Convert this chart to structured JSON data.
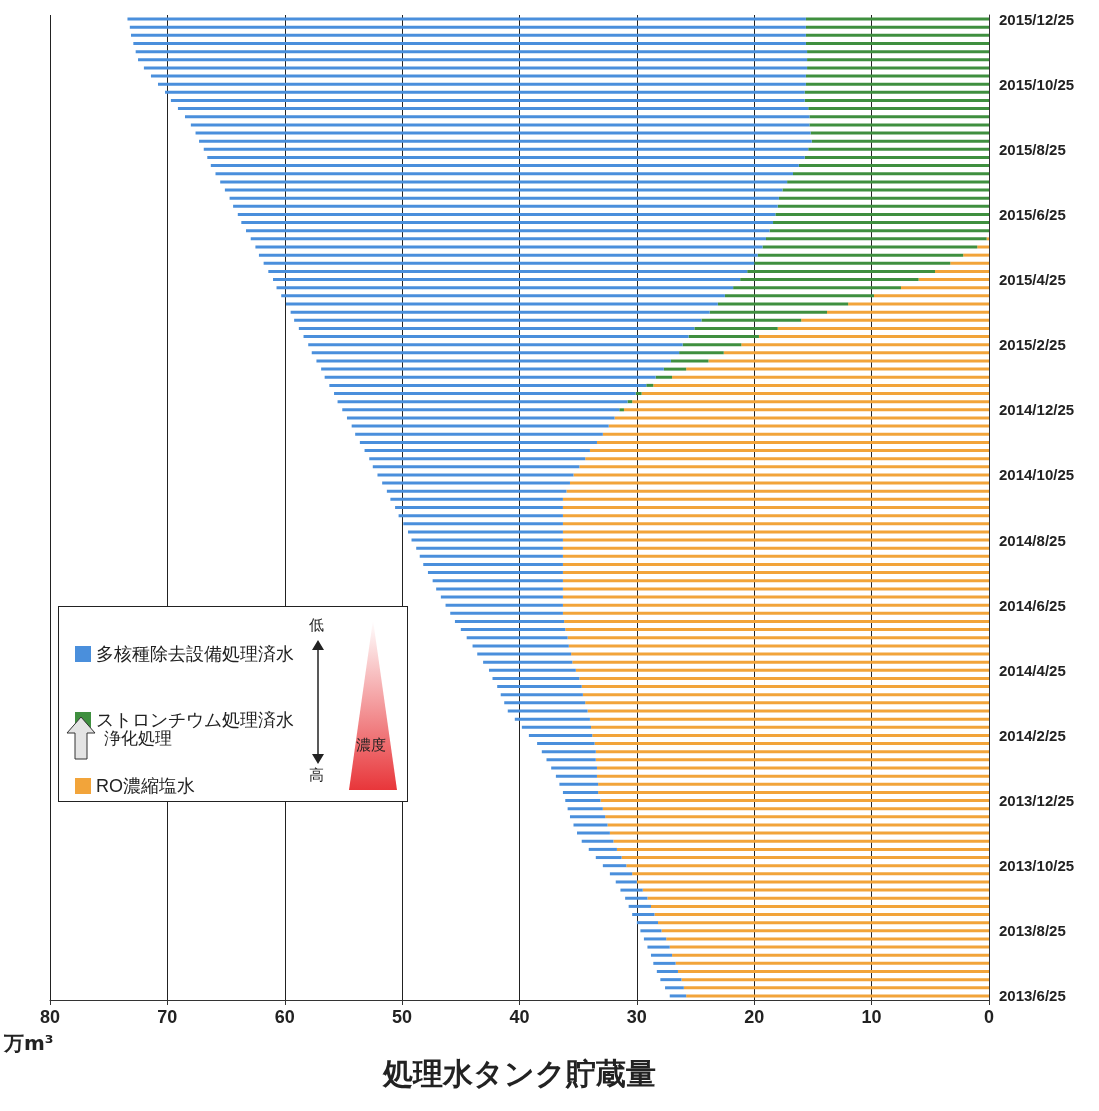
{
  "chart_data": {
    "type": "bar",
    "orientation": "horizontal",
    "stacked": true,
    "grid": "x",
    "legend": "bottom left",
    "xlabel": "処理水タンク貯蔵量",
    "annotations": [
      "万m³",
      "浄化処理",
      "低",
      "高",
      "濃度"
    ],
    "xlim": [
      80,
      0
    ],
    "xticks": [
      0,
      10,
      20,
      30,
      40,
      50,
      60,
      70,
      80
    ],
    "categories": [
      "2015/12/25",
      null,
      null,
      null,
      null,
      null,
      null,
      null,
      "2015/10/25",
      null,
      null,
      null,
      null,
      null,
      null,
      null,
      "2015/8/25",
      null,
      null,
      null,
      null,
      null,
      null,
      null,
      "2015/6/25",
      null,
      null,
      null,
      null,
      null,
      null,
      null,
      "2015/4/25",
      null,
      null,
      null,
      null,
      null,
      null,
      null,
      "2015/2/25",
      null,
      null,
      null,
      null,
      null,
      null,
      null,
      "2014/12/25",
      null,
      null,
      null,
      null,
      null,
      null,
      null,
      "2014/10/25",
      null,
      null,
      null,
      null,
      null,
      null,
      null,
      "2014/8/25",
      null,
      null,
      null,
      null,
      null,
      null,
      null,
      "2014/6/25",
      null,
      null,
      null,
      null,
      null,
      null,
      null,
      "2014/4/25",
      null,
      null,
      null,
      null,
      null,
      null,
      null,
      "2014/2/25",
      null,
      null,
      null,
      null,
      null,
      null,
      null,
      "2013/12/25",
      null,
      null,
      null,
      null,
      null,
      null,
      null,
      "2013/10/25",
      null,
      null,
      null,
      null,
      null,
      null,
      null,
      "2013/8/25",
      null,
      null,
      null,
      null,
      null,
      null,
      null,
      "2013/6/25"
    ],
    "series": [
      {
        "name": "RO濃縮塩水",
        "color": "#f2a43a",
        "values": [
          0,
          0,
          0,
          0,
          0,
          0,
          0,
          0,
          0,
          0,
          0,
          0,
          0,
          0,
          0,
          0,
          0,
          0,
          0,
          0,
          0,
          0,
          0,
          0,
          0,
          0,
          0,
          0.2,
          1.0,
          2.2,
          3.3,
          4.6,
          6.0,
          7.5,
          9.8,
          12.0,
          13.8,
          16.0,
          18.0,
          19.6,
          21.1,
          22.6,
          23.9,
          25.8,
          27.0,
          28.6,
          29.6,
          30.4,
          31.1,
          31.9,
          32.4,
          32.9,
          33.4,
          34.0,
          34.4,
          34.9,
          35.4,
          35.7,
          36.0,
          36.3,
          36.3,
          36.3,
          36.3,
          36.3,
          36.3,
          36.3,
          36.3,
          36.3,
          36.3,
          36.3,
          36.3,
          36.3,
          36.3,
          36.3,
          36.2,
          36.1,
          35.9,
          35.8,
          35.6,
          35.5,
          35.2,
          34.9,
          34.7,
          34.6,
          34.4,
          34.2,
          34.0,
          33.9,
          33.8,
          33.6,
          33.5,
          33.5,
          33.4,
          33.4,
          33.3,
          33.3,
          33.1,
          32.9,
          32.7,
          32.5,
          32.3,
          32.0,
          31.7,
          31.3,
          30.9,
          30.4,
          30.0,
          29.5,
          29.1,
          28.8,
          28.5,
          28.2,
          27.9,
          27.5,
          27.2,
          27.0,
          26.7,
          26.5,
          26.2,
          26.0,
          25.8
        ]
      },
      {
        "name": "ストロンチウム処理済水",
        "color": "#3f8f3f",
        "values": [
          15.6,
          15.6,
          15.6,
          15.6,
          15.5,
          15.5,
          15.5,
          15.6,
          15.6,
          15.7,
          15.7,
          15.4,
          15.3,
          15.3,
          15.2,
          15.1,
          15.4,
          15.7,
          16.2,
          16.7,
          17.2,
          17.6,
          17.9,
          18.0,
          18.2,
          18.4,
          18.7,
          18.8,
          18.3,
          17.5,
          16.7,
          16.0,
          15.2,
          14.3,
          12.7,
          11.1,
          10.0,
          8.5,
          7.1,
          6.0,
          5.0,
          3.8,
          3.2,
          1.9,
          1.4,
          0.6,
          0.5,
          0.4,
          0.4,
          0,
          0,
          0,
          0,
          0,
          0,
          0,
          0,
          0,
          0,
          0,
          0,
          0,
          0,
          0,
          0,
          0,
          0,
          0,
          0,
          0,
          0,
          0,
          0,
          0,
          0,
          0,
          0,
          0,
          0,
          0,
          0,
          0,
          0,
          0,
          0,
          0,
          0,
          0,
          0,
          0,
          0,
          0,
          0,
          0,
          0,
          0,
          0,
          0,
          0,
          0,
          0,
          0,
          0,
          0,
          0,
          0,
          0,
          0,
          0,
          0,
          0,
          0,
          0,
          0,
          0,
          0,
          0,
          0,
          0,
          0,
          0
        ]
      },
      {
        "name": "多核種除去設備処理済水",
        "color": "#4a8fdc",
        "values": [
          57.8,
          57.6,
          57.5,
          57.3,
          57.2,
          57.0,
          56.5,
          55.8,
          55.2,
          54.5,
          54.0,
          53.7,
          53.2,
          52.7,
          52.4,
          52.2,
          51.5,
          50.9,
          50.1,
          49.2,
          48.3,
          47.5,
          46.8,
          46.4,
          45.8,
          45.3,
          44.6,
          43.9,
          43.2,
          42.5,
          41.8,
          40.8,
          39.8,
          38.9,
          37.8,
          36.8,
          35.7,
          34.7,
          33.7,
          32.8,
          31.9,
          31.3,
          30.2,
          29.2,
          28.2,
          27.0,
          25.7,
          24.7,
          23.6,
          22.8,
          21.9,
          21.1,
          20.2,
          19.2,
          18.4,
          17.6,
          16.7,
          16.0,
          15.3,
          14.7,
          14.3,
          14.0,
          13.6,
          13.2,
          12.9,
          12.5,
          12.2,
          11.9,
          11.5,
          11.1,
          10.8,
          10.4,
          10.0,
          9.6,
          9.3,
          8.9,
          8.6,
          8.2,
          8.0,
          7.6,
          7.4,
          7.4,
          7.2,
          7.0,
          6.9,
          6.8,
          6.4,
          5.9,
          5.4,
          4.9,
          4.6,
          4.2,
          3.9,
          3.5,
          3.3,
          3.0,
          3.0,
          3.0,
          3.0,
          2.9,
          2.8,
          2.7,
          2.4,
          2.2,
          2.0,
          1.9,
          1.8,
          1.9,
          1.9,
          1.9,
          1.9,
          1.8,
          1.8,
          1.9,
          1.9,
          1.8,
          1.9,
          1.8,
          1.8,
          1.6,
          1.4
        ]
      }
    ]
  }
}
